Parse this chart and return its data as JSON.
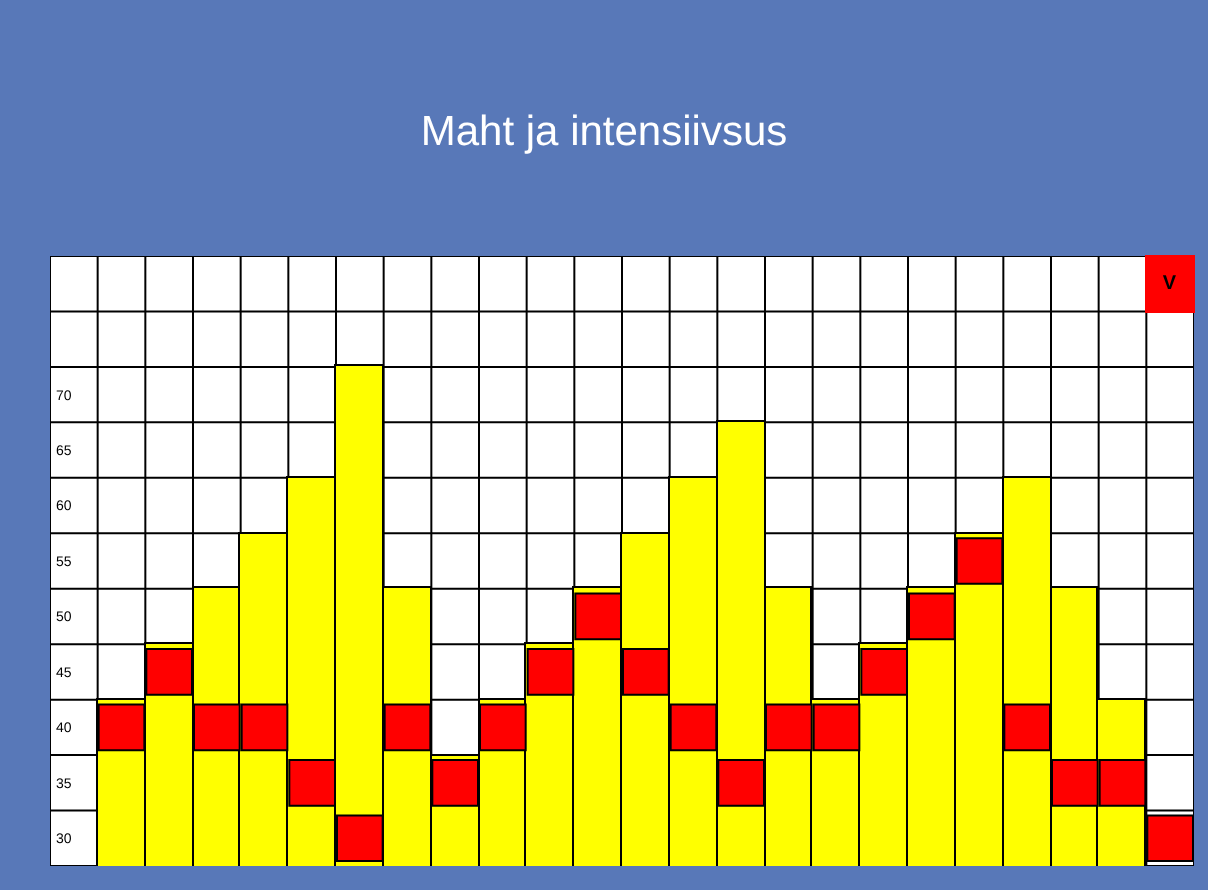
{
  "chart_data": {
    "type": "bar",
    "title": "Maht ja intensiivsus",
    "categories": [
      null,
      null,
      null,
      null,
      null,
      null,
      null,
      null,
      null,
      null,
      null,
      null,
      null,
      null,
      null,
      null,
      null,
      null,
      null,
      null,
      null,
      null,
      null,
      null
    ],
    "series": [
      {
        "color": "#ffff00",
        "values": [
          null,
          42.5,
          47.5,
          52.5,
          57.5,
          62.5,
          72.5,
          52.5,
          37.5,
          42.5,
          47.5,
          52.5,
          57.5,
          62.5,
          67.5,
          52.5,
          42.5,
          47.5,
          52.5,
          57.5,
          62.5,
          52.5,
          42.5,
          null
        ]
      },
      {
        "type": "scatter",
        "marker": "square",
        "color": "#ff0000",
        "values": [
          null,
          40,
          45,
          40,
          40,
          35,
          30,
          40,
          35,
          40,
          45,
          50,
          45,
          40,
          35,
          40,
          40,
          45,
          50,
          55,
          40,
          35,
          35,
          30
        ]
      }
    ],
    "ylim": [
      27.5,
      82.5
    ],
    "yticks": [
      30,
      35,
      40,
      45,
      50,
      55,
      60,
      65,
      70
    ],
    "grid": true,
    "tick_labels": "y",
    "annotations": [
      "V"
    ]
  }
}
